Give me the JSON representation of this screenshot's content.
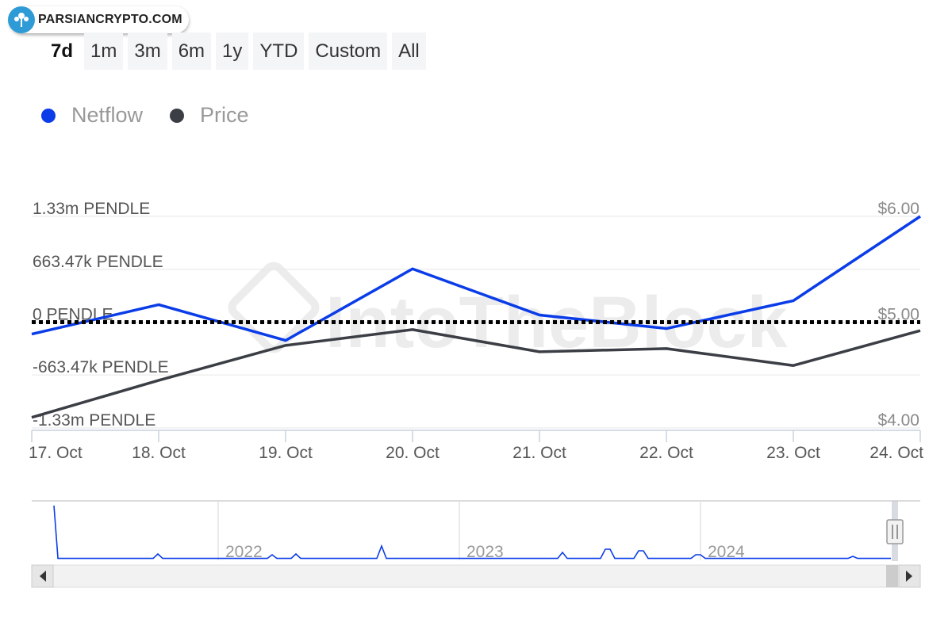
{
  "logo": {
    "text": "PARSIANCRYPTO.COM"
  },
  "ranges": [
    {
      "label": "7d",
      "active": true
    },
    {
      "label": "1m"
    },
    {
      "label": "3m"
    },
    {
      "label": "6m"
    },
    {
      "label": "1y"
    },
    {
      "label": "YTD"
    },
    {
      "label": "Custom"
    },
    {
      "label": "All"
    }
  ],
  "legend": [
    {
      "name": "Netflow",
      "color": "#0a3ce8"
    },
    {
      "name": "Price",
      "color": "#3b3f45"
    }
  ],
  "watermark": "IntoTheBlock",
  "colors": {
    "netflow": "#0a3ce8",
    "price": "#3b3f45",
    "grid": "#e6e6e6",
    "axis_text": "#555555",
    "right_axis_text": "#8a8a8a"
  },
  "chart_data": {
    "type": "line",
    "categories": [
      "17. Oct",
      "18. Oct",
      "19. Oct",
      "20. Oct",
      "21. Oct",
      "22. Oct",
      "23. Oct",
      "24. Oct"
    ],
    "series": [
      {
        "name": "Netflow",
        "unit": "PENDLE",
        "axis": "left",
        "values": [
          -150000,
          220000,
          -230000,
          670000,
          90000,
          -80000,
          270000,
          1330000
        ]
      },
      {
        "name": "Price",
        "unit": "USD",
        "axis": "right",
        "values": [
          4.1,
          4.45,
          4.78,
          4.93,
          4.72,
          4.75,
          4.59,
          4.92
        ]
      }
    ],
    "left_axis": {
      "ylim": [
        -1330000,
        1330000
      ],
      "ticks": [
        1330000,
        663470,
        0,
        -663470,
        -1330000
      ],
      "tick_labels": [
        "1.33m PENDLE",
        "663.47k PENDLE",
        "0 PENDLE",
        "-663.47k PENDLE",
        "-1.33m PENDLE"
      ]
    },
    "right_axis": {
      "ylim": [
        4.0,
        6.0
      ],
      "ticks": [
        6.0,
        5.0,
        4.0
      ],
      "tick_labels": [
        "$6.00",
        "$5.00",
        "$4.00"
      ]
    },
    "zero_line": {
      "value": 0,
      "style": "dotted"
    },
    "grid": true,
    "legend_position": "top-left",
    "navigator": {
      "year_labels": [
        "2022",
        "2023",
        "2024"
      ]
    }
  }
}
